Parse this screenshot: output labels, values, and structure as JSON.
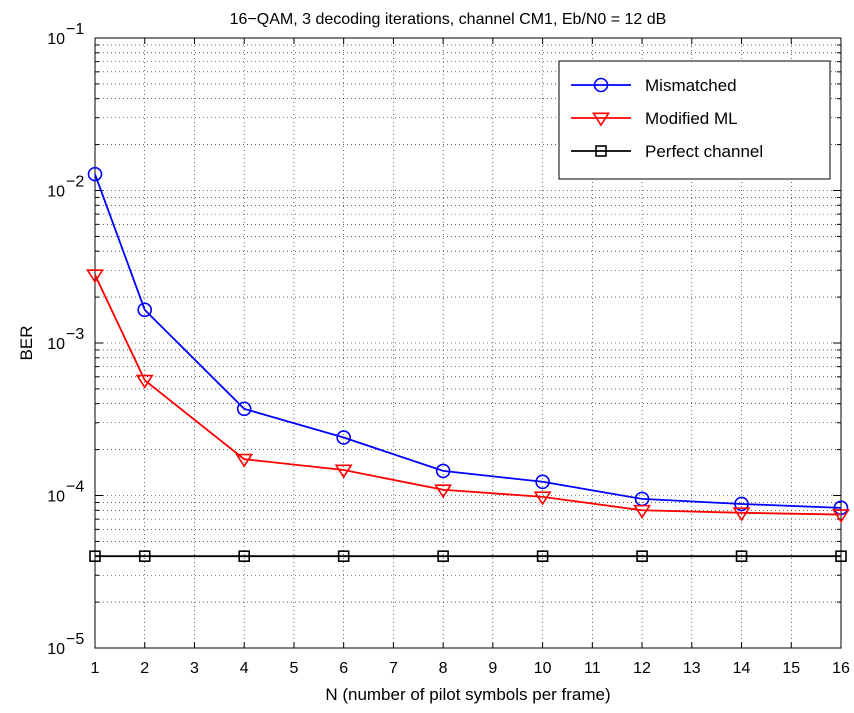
{
  "chart_data": {
    "type": "line",
    "title": "16−QAM, 3 decoding iterations, channel CM1, Eb/N0 = 12 dB",
    "xlabel": "N (number of pilot symbols per frame)",
    "ylabel": "BER",
    "xlim": [
      1,
      16
    ],
    "ylim": [
      1e-05,
      0.1
    ],
    "yscale": "log",
    "grid": true,
    "legend_position": "top-right",
    "x_ticks": [
      "1",
      "2",
      "3",
      "4",
      "5",
      "6",
      "7",
      "8",
      "9",
      "10",
      "11",
      "12",
      "13",
      "14",
      "15",
      "16"
    ],
    "y_ticks": [
      {
        "base": "10",
        "exp": "−5"
      },
      {
        "base": "10",
        "exp": "−4"
      },
      {
        "base": "10",
        "exp": "−3"
      },
      {
        "base": "10",
        "exp": "−2"
      },
      {
        "base": "10",
        "exp": "−1"
      }
    ],
    "series": [
      {
        "name": "Mismatched",
        "color": "#0000ff",
        "marker": "circle",
        "x": [
          1,
          2,
          4,
          6,
          8,
          10,
          12,
          14,
          16
        ],
        "values": [
          0.0128,
          0.00165,
          0.00037,
          0.00024,
          0.000145,
          0.000123,
          9.5e-05,
          8.8e-05,
          8.3e-05
        ]
      },
      {
        "name": "Modified ML",
        "color": "#ff0000",
        "marker": "triangle-down",
        "x": [
          1,
          2,
          4,
          6,
          8,
          10,
          12,
          14,
          16
        ],
        "values": [
          0.0028,
          0.00057,
          0.000173,
          0.000147,
          0.000109,
          9.8e-05,
          8e-05,
          7.7e-05,
          7.5e-05
        ]
      },
      {
        "name": "Perfect channel",
        "color": "#000000",
        "marker": "square",
        "x": [
          1,
          2,
          4,
          6,
          8,
          10,
          12,
          14,
          16
        ],
        "values": [
          4e-05,
          4e-05,
          4e-05,
          4e-05,
          4e-05,
          4e-05,
          4e-05,
          4e-05,
          4e-05
        ]
      }
    ]
  }
}
